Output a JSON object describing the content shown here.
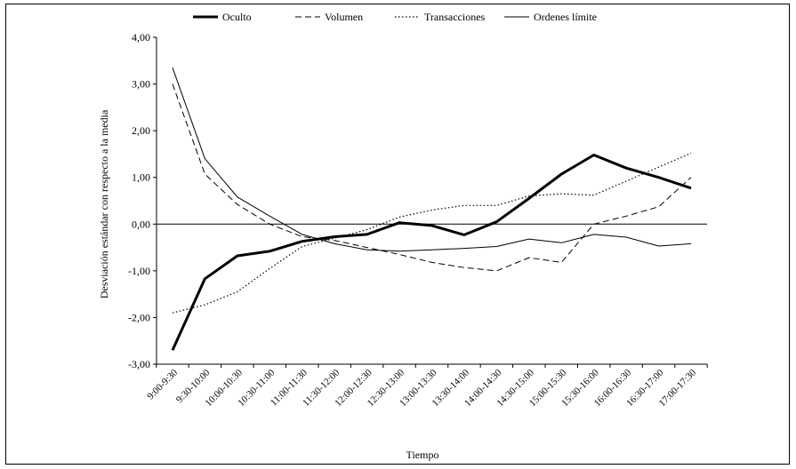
{
  "chart_data": {
    "type": "line",
    "title": "",
    "xlabel": "Tiempo",
    "ylabel": "Desviación estándar con respecto a la media",
    "ylim": [
      -3,
      4
    ],
    "yticks": [
      -3,
      -2,
      -1,
      0,
      1,
      2,
      3,
      4
    ],
    "ytick_labels": [
      "-3,00",
      "-2,00",
      "-1,00",
      "0,00",
      "1,00",
      "2,00",
      "3,00",
      "4,00"
    ],
    "grid": false,
    "legend_position": "top",
    "categories": [
      "9:00-9:30",
      "9:30-10:00",
      "10:00-10:30",
      "10:30-11:00",
      "11:00-11:30",
      "11:30-12:00",
      "12:00-12:30",
      "12:30-13:00",
      "13:00-13:30",
      "13:30-14:00",
      "14:00-14:30",
      "14:30-15:00",
      "15:00-15:30",
      "15:30-16:00",
      "16:00-16:30",
      "16:30-17:00",
      "17:00-17:30"
    ],
    "series": [
      {
        "name": "Oculto",
        "style": "thick",
        "values": [
          -2.7,
          -1.17,
          -0.68,
          -0.58,
          -0.37,
          -0.27,
          -0.22,
          0.03,
          -0.03,
          -0.23,
          0.05,
          0.55,
          1.07,
          1.48,
          1.2,
          1.0,
          0.77
        ]
      },
      {
        "name": "Volumen",
        "style": "dashed",
        "values": [
          3.0,
          1.07,
          0.42,
          0.0,
          -0.27,
          -0.35,
          -0.5,
          -0.65,
          -0.82,
          -0.93,
          -1.0,
          -0.72,
          -0.82,
          0.0,
          0.17,
          0.37,
          1.0
        ]
      },
      {
        "name": "Transacciones",
        "style": "dotted",
        "values": [
          -1.9,
          -1.73,
          -1.45,
          -0.95,
          -0.48,
          -0.3,
          -0.12,
          0.15,
          0.3,
          0.4,
          0.4,
          0.6,
          0.65,
          0.62,
          0.92,
          1.22,
          1.52
        ]
      },
      {
        "name": "Ordenes límite",
        "style": "thin",
        "values": [
          3.35,
          1.4,
          0.58,
          0.17,
          -0.22,
          -0.42,
          -0.55,
          -0.58,
          -0.55,
          -0.52,
          -0.48,
          -0.32,
          -0.4,
          -0.22,
          -0.28,
          -0.47,
          -0.42
        ]
      }
    ]
  }
}
